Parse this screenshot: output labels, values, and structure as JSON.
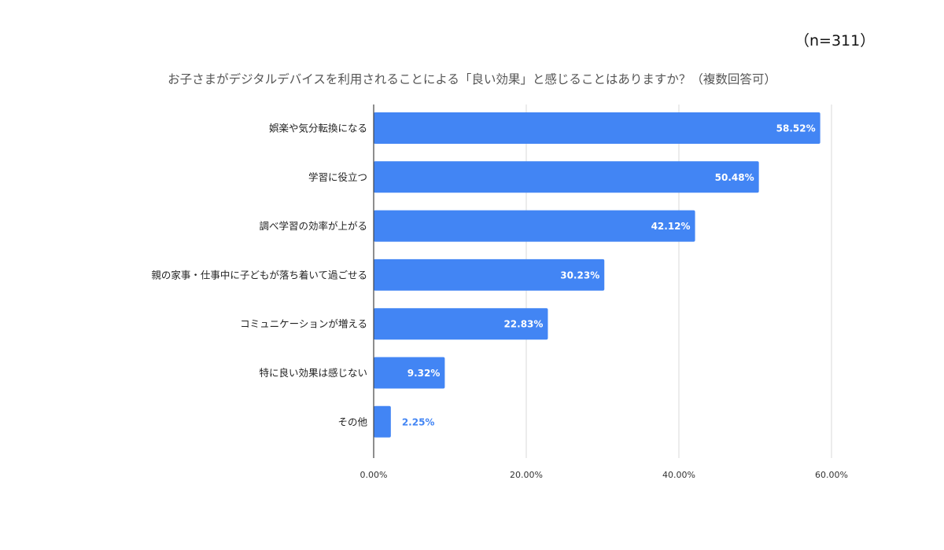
{
  "header": {
    "sample_size": "（n=311）",
    "title": "お子さまがデジタルデバイスを利用されることによる「良い効果」と感じることはありますか？（複数回答可）"
  },
  "chart_data": {
    "type": "bar",
    "orientation": "horizontal",
    "title": "お子さまがデジタルデバイスを利用されることによる「良い効果」と感じることはありますか？（複数回答可）",
    "categories": [
      "娯楽や気分転換になる",
      "学習に役立つ",
      "調べ学習の効率が上がる",
      "親の家事・仕事中に子どもが落ち着いて過ごせる",
      "コミュニケーションが増える",
      "特に良い効果は感じない",
      "その他"
    ],
    "values": [
      58.52,
      50.48,
      42.12,
      30.23,
      22.83,
      9.32,
      2.25
    ],
    "value_labels": [
      "58.52%",
      "50.48%",
      "42.12%",
      "30.23%",
      "22.83%",
      "9.32%",
      "2.25%"
    ],
    "xlim": [
      0,
      60
    ],
    "x_ticks": [
      0,
      20,
      40,
      60
    ],
    "x_tick_labels": [
      "0.00%",
      "20.00%",
      "40.00%",
      "60.00%"
    ],
    "grid": true,
    "legend": "none",
    "bar_color": "#4285f4",
    "label_inside_color": "#ffffff",
    "label_outside_color": "#4285f4"
  }
}
